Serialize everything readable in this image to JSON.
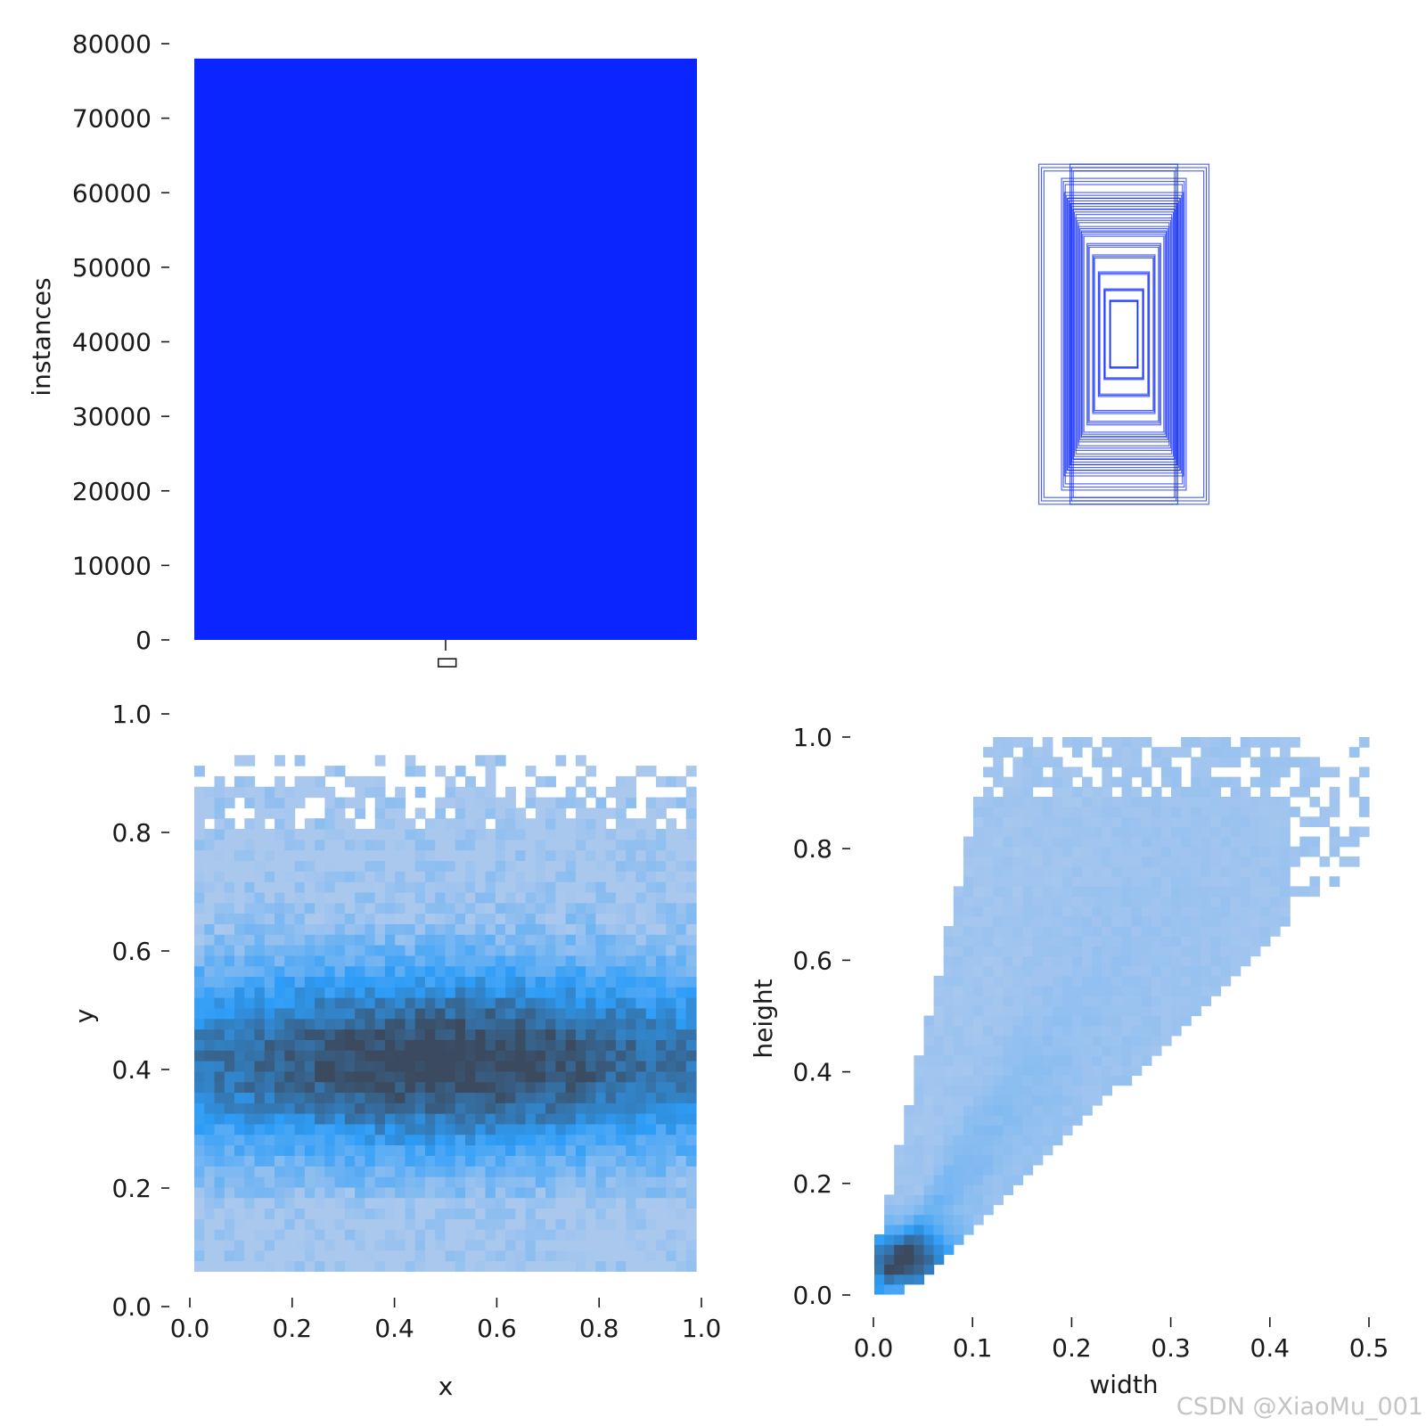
{
  "watermark": "CSDN @XiaoMu_001",
  "colors": {
    "bar": "#0a25ff",
    "box_stroke": "#0a25ff",
    "heat_low": "#aac8ee",
    "heat_mid": "#2e9df7",
    "heat_high": "#3b4a5e"
  },
  "chart_data": [
    {
      "id": "class-counts",
      "type": "bar",
      "categories": [
        "▯"
      ],
      "values": [
        78000
      ],
      "ylabel": "instances",
      "ylim": [
        0,
        80000
      ],
      "yticks": [
        "0",
        "10000",
        "20000",
        "30000",
        "40000",
        "50000",
        "60000",
        "70000",
        "80000"
      ]
    },
    {
      "id": "box-overlay",
      "type": "scatter",
      "note_values": "normalized width/height of overlaid label boxes",
      "boxes": [
        {
          "w": 0.3,
          "h": 0.6
        },
        {
          "w": 0.19,
          "h": 0.6
        },
        {
          "w": 0.22,
          "h": 0.55
        },
        {
          "w": 0.21,
          "h": 0.5
        },
        {
          "w": 0.2,
          "h": 0.48
        },
        {
          "w": 0.19,
          "h": 0.46
        },
        {
          "w": 0.18,
          "h": 0.44
        },
        {
          "w": 0.17,
          "h": 0.41
        },
        {
          "w": 0.16,
          "h": 0.38
        },
        {
          "w": 0.15,
          "h": 0.36
        },
        {
          "w": 0.13,
          "h": 0.32
        },
        {
          "w": 0.11,
          "h": 0.28
        },
        {
          "w": 0.09,
          "h": 0.22
        },
        {
          "w": 0.07,
          "h": 0.16
        },
        {
          "w": 0.05,
          "h": 0.12
        }
      ]
    },
    {
      "id": "xy-heatmap",
      "type": "heatmap",
      "xlabel": "x",
      "ylabel": "y",
      "xlim": [
        0,
        1
      ],
      "ylim": [
        0,
        1
      ],
      "xticks": [
        "0.0",
        "0.2",
        "0.4",
        "0.6",
        "0.8",
        "1.0"
      ],
      "yticks": [
        "0.0",
        "0.2",
        "0.4",
        "0.6",
        "0.8",
        "1.0"
      ],
      "peak": {
        "x": 0.5,
        "y": 0.4
      }
    },
    {
      "id": "wh-heatmap",
      "type": "heatmap",
      "xlabel": "width",
      "ylabel": "height",
      "xlim": [
        0,
        0.5
      ],
      "ylim": [
        0,
        1
      ],
      "xticks": [
        "0.0",
        "0.1",
        "0.2",
        "0.3",
        "0.4",
        "0.5"
      ],
      "yticks": [
        "0.0",
        "0.2",
        "0.4",
        "0.6",
        "0.8",
        "1.0"
      ],
      "peak": {
        "x": 0.03,
        "y": 0.06
      }
    }
  ]
}
